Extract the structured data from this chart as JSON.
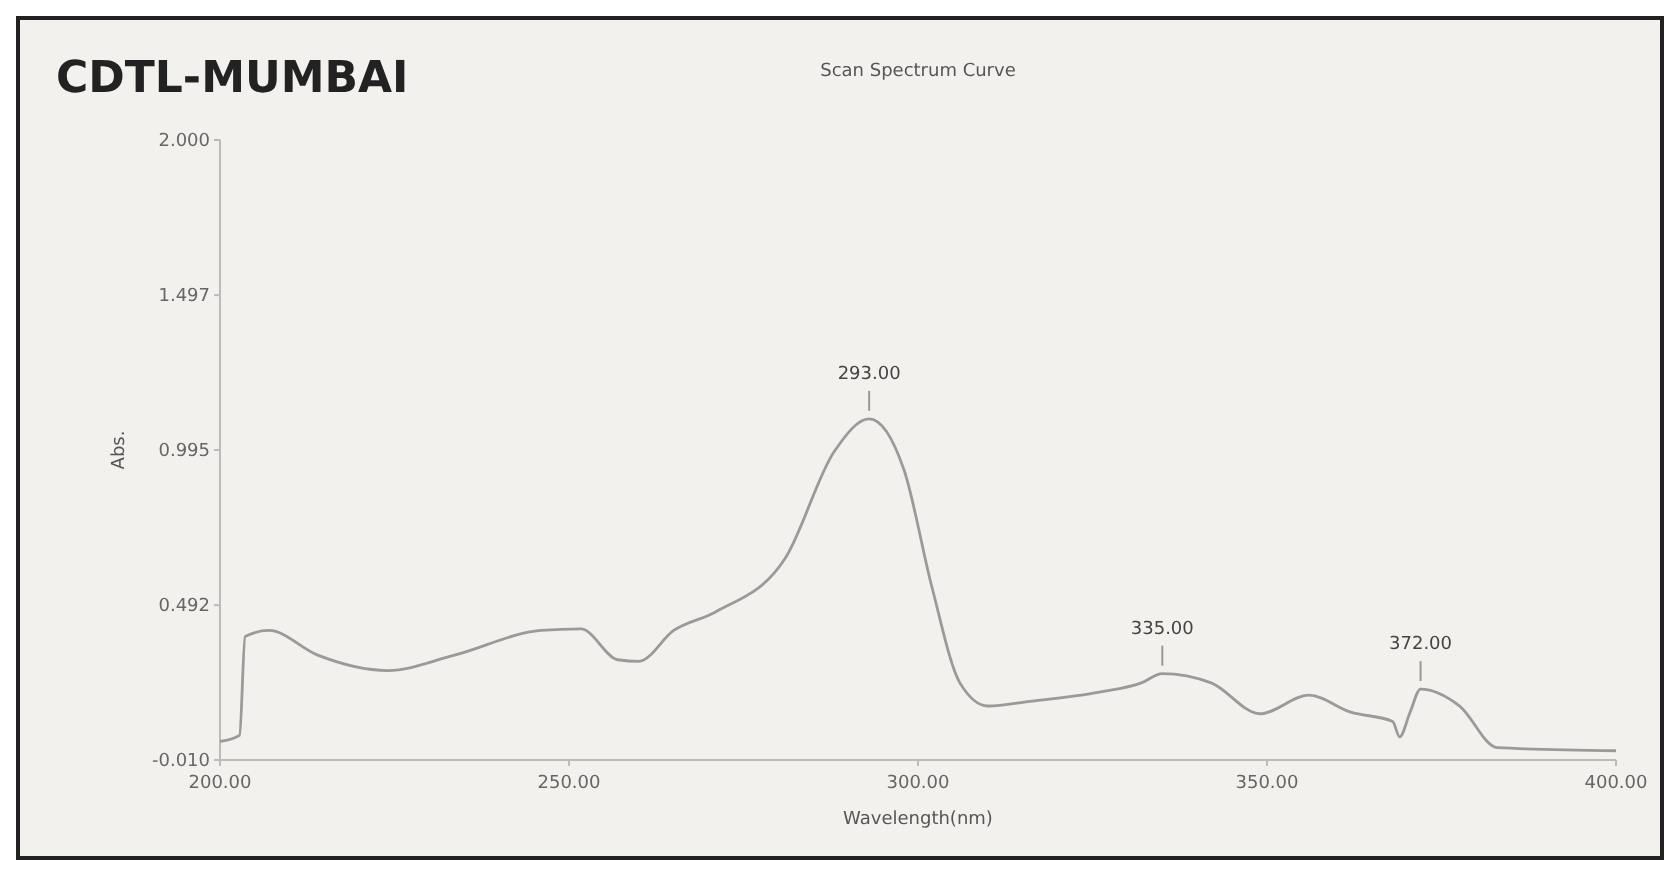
{
  "chart_data": {
    "type": "line",
    "title": "CDTL-MUMBAI",
    "subtitle": "Scan Spectrum Curve",
    "xlabel": "Wavelength(nm)",
    "ylabel": "Abs.",
    "x": [
      200,
      202.8,
      203.6,
      207,
      214,
      224,
      233.6,
      246,
      251.7,
      257,
      260,
      265,
      271,
      281,
      288,
      293,
      298,
      302,
      306,
      310,
      316,
      326,
      332,
      335,
      342,
      349,
      356,
      362,
      368,
      369,
      370.5,
      372,
      377.6,
      383,
      400
    ],
    "series": [
      {
        "color": "#9a9a9a",
        "values": [
          0.05,
          0.07,
          0.39,
          0.41,
          0.33,
          0.28,
          0.33,
          0.41,
          0.415,
          0.315,
          0.31,
          0.41,
          0.47,
          0.645,
          0.99,
          1.096,
          0.93,
          0.55,
          0.24,
          0.165,
          0.18,
          0.21,
          0.24,
          0.27,
          0.24,
          0.14,
          0.2,
          0.145,
          0.115,
          0.065,
          0.145,
          0.22,
          0.165,
          0.03,
          0.02
        ]
      }
    ],
    "xlim": [
      200,
      400
    ],
    "xticks": [
      {
        "value": 200,
        "label": "200.00"
      },
      {
        "value": 250,
        "label": "250.00"
      },
      {
        "value": 300,
        "label": "300.00"
      },
      {
        "value": 350,
        "label": "350.00"
      },
      {
        "value": 400,
        "label": "400.00"
      }
    ],
    "ylim": [
      -0.01,
      2
    ],
    "yticks": [
      {
        "value": -0.01,
        "label": "-0.010"
      },
      {
        "value": 0.492,
        "label": "0.492"
      },
      {
        "value": 0.995,
        "label": "0.995"
      },
      {
        "value": 1.497,
        "label": "1.497"
      },
      {
        "value": 2,
        "label": "2.000"
      }
    ],
    "annotations": [
      {
        "text": "293.00",
        "x": 293,
        "y": 1.096
      },
      {
        "text": "335.00",
        "x": 335,
        "y": 0.27
      },
      {
        "text": "372.00",
        "x": 372,
        "y": 0.22
      }
    ],
    "grid": false,
    "marker": "none",
    "line_style": "solid"
  }
}
